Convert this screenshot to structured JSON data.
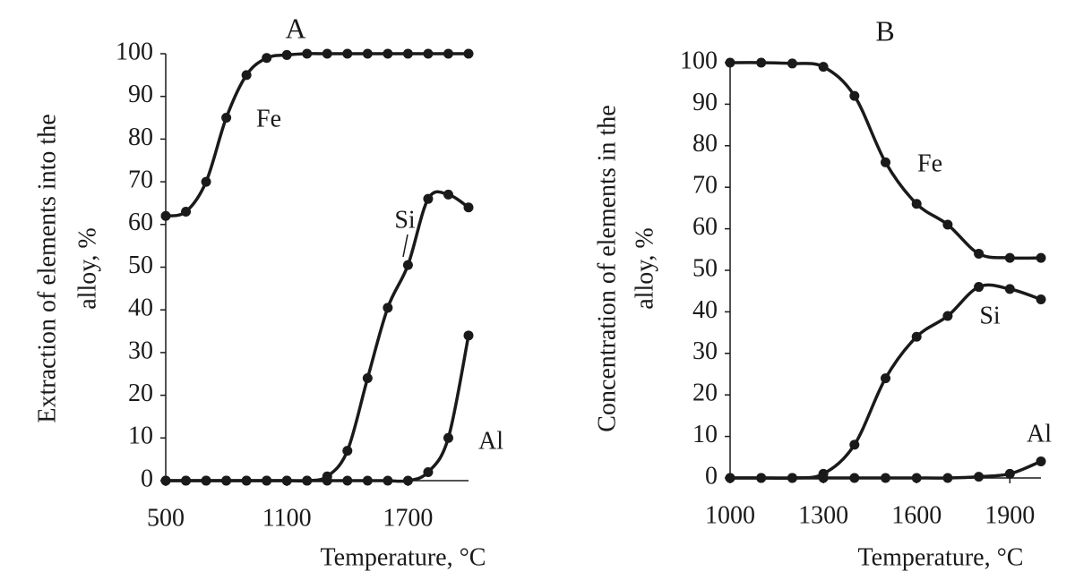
{
  "chart_data": [
    {
      "type": "line",
      "title": "A",
      "x_label": "Temperature, °C",
      "y_label": [
        "Extraction of elements into the",
        "alloy, %"
      ],
      "x": [
        500,
        600,
        700,
        800,
        900,
        1000,
        1100,
        1200,
        1300,
        1400,
        1500,
        1600,
        1700,
        1800,
        1900,
        2000
      ],
      "series": [
        {
          "name": "Fe",
          "color": "#1a1a1a",
          "values": [
            62,
            63,
            70,
            85,
            95,
            99,
            99.7,
            100,
            100,
            100,
            100,
            100,
            100,
            100,
            100,
            100
          ]
        },
        {
          "name": "Si",
          "color": "#1a1a1a",
          "values": [
            0,
            0,
            0,
            0,
            0,
            0,
            0,
            0,
            1,
            7,
            24,
            40.5,
            50.5,
            66,
            67,
            64
          ]
        },
        {
          "name": "Al",
          "color": "#1a1a1a",
          "values": [
            0,
            0,
            0,
            0,
            0,
            0,
            0,
            0,
            0,
            0,
            0,
            0,
            0,
            2,
            10,
            34
          ]
        }
      ],
      "xlim": [
        500,
        2000
      ],
      "xticks": [
        500,
        1100,
        1700
      ],
      "ylim": [
        0,
        100
      ],
      "yticks": [
        0,
        10,
        20,
        30,
        40,
        50,
        60,
        70,
        80,
        90,
        100
      ]
    },
    {
      "type": "line",
      "title": "B",
      "x_label": "Temperature, °C",
      "y_label": [
        "Concentration of elements in the",
        "alloy, %"
      ],
      "x": [
        1000,
        1100,
        1200,
        1300,
        1400,
        1500,
        1600,
        1700,
        1800,
        1900,
        2000
      ],
      "series": [
        {
          "name": "Fe",
          "color": "#1a1a1a",
          "values": [
            100,
            100,
            99.8,
            99,
            92,
            76,
            66,
            61,
            54,
            53,
            53
          ]
        },
        {
          "name": "Si",
          "color": "#1a1a1a",
          "values": [
            0,
            0,
            0,
            1,
            8,
            24,
            34,
            39,
            46,
            45.5,
            43
          ]
        },
        {
          "name": "Al",
          "color": "#1a1a1a",
          "values": [
            0,
            0,
            0,
            0,
            0,
            0,
            0,
            0,
            0.3,
            1,
            4
          ]
        }
      ],
      "xlim": [
        1000,
        2000
      ],
      "xticks": [
        1000,
        1300,
        1600,
        1900
      ],
      "ylim": [
        0,
        100
      ],
      "yticks": [
        0,
        10,
        20,
        30,
        40,
        50,
        60,
        70,
        80,
        90,
        100
      ]
    }
  ]
}
